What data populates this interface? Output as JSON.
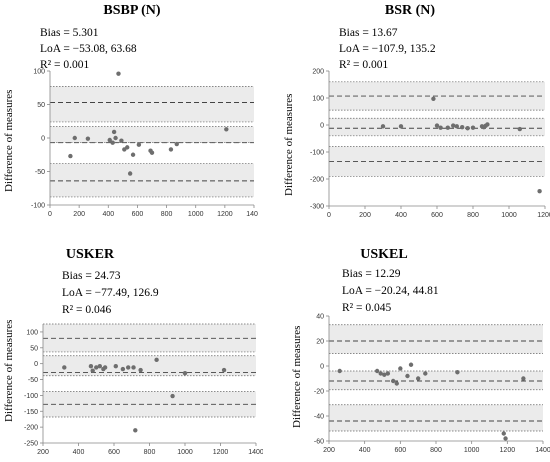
{
  "chart_data": [
    {
      "type": "scatter",
      "title": "BSBP (N)",
      "ylabel": "Difference of measures",
      "xlabel": "",
      "stats": {
        "bias": "Bias = 5.301",
        "loa": "LoA = −53.08, 63.68",
        "r2": "R² = 0.001"
      },
      "bias": 5.301,
      "loa": [
        -53.08,
        63.68
      ],
      "xlim": [
        0,
        1400
      ],
      "ylim": [
        -100,
        100
      ],
      "xticks": [
        0,
        200,
        400,
        600,
        800,
        1000,
        1200,
        1400
      ],
      "yticks": [
        -100,
        -50,
        0,
        50,
        100
      ],
      "bands": [
        [
          -88,
          -38
        ],
        [
          -7,
          17
        ],
        [
          24,
          77
        ]
      ],
      "dashed_lines": [
        -64,
        -7,
        53
      ],
      "points": [
        {
          "x": 140,
          "y": -27
        },
        {
          "x": 170,
          "y": 0
        },
        {
          "x": 260,
          "y": -1
        },
        {
          "x": 410,
          "y": -3
        },
        {
          "x": 430,
          "y": -7
        },
        {
          "x": 440,
          "y": 9
        },
        {
          "x": 450,
          "y": 0
        },
        {
          "x": 470,
          "y": 96
        },
        {
          "x": 490,
          "y": -4
        },
        {
          "x": 510,
          "y": -17
        },
        {
          "x": 530,
          "y": -14
        },
        {
          "x": 550,
          "y": -53
        },
        {
          "x": 570,
          "y": -25
        },
        {
          "x": 610,
          "y": -10
        },
        {
          "x": 690,
          "y": -19
        },
        {
          "x": 700,
          "y": -22
        },
        {
          "x": 830,
          "y": -17
        },
        {
          "x": 870,
          "y": -9
        },
        {
          "x": 1210,
          "y": 13
        }
      ]
    },
    {
      "type": "scatter",
      "title": "BSR (N)",
      "ylabel": "Difference of measures",
      "xlabel": "",
      "stats": {
        "bias": "Bias = 13.67",
        "loa": "LoA = −107.9, 135.2",
        "r2": "R² = 0.001"
      },
      "bias": 13.67,
      "loa": [
        -107.9,
        135.2
      ],
      "xlim": [
        0,
        1200
      ],
      "ylim": [
        -300,
        200
      ],
      "xticks": [
        0,
        200,
        400,
        600,
        800,
        1000,
        1200
      ],
      "yticks": [
        -300,
        -200,
        -100,
        0,
        100,
        200
      ],
      "bands": [
        [
          -190,
          -80
        ],
        [
          -40,
          25
        ],
        [
          55,
          160
        ]
      ],
      "dashed_lines": [
        -135,
        -12,
        107
      ],
      "points": [
        {
          "x": 300,
          "y": -5
        },
        {
          "x": 400,
          "y": -5
        },
        {
          "x": 580,
          "y": 97
        },
        {
          "x": 600,
          "y": -2
        },
        {
          "x": 620,
          "y": -10
        },
        {
          "x": 660,
          "y": -10
        },
        {
          "x": 690,
          "y": -2
        },
        {
          "x": 710,
          "y": -5
        },
        {
          "x": 740,
          "y": -8
        },
        {
          "x": 770,
          "y": -12
        },
        {
          "x": 800,
          "y": -10
        },
        {
          "x": 850,
          "y": -5
        },
        {
          "x": 860,
          "y": -8
        },
        {
          "x": 870,
          "y": -3
        },
        {
          "x": 880,
          "y": 2
        },
        {
          "x": 1060,
          "y": -15
        },
        {
          "x": 1170,
          "y": -245
        }
      ]
    },
    {
      "type": "scatter",
      "title": "USKER",
      "ylabel": "Difference of measures",
      "xlabel": "",
      "stats": {
        "bias": "Bias = 24.73",
        "loa": "LoA = −77.49, 126.9",
        "r2": "R² = 0.046"
      },
      "bias": 24.73,
      "loa": [
        -77.49,
        126.9
      ],
      "xlim": [
        200,
        1400
      ],
      "ylim": [
        -250,
        125
      ],
      "xticks": [
        200,
        400,
        600,
        800,
        1000,
        1200,
        1400
      ],
      "yticks": [
        -250,
        -200,
        -150,
        -100,
        -50,
        0,
        50,
        100
      ],
      "bands": [
        [
          -168,
          -88
        ],
        [
          -38,
          25
        ],
        [
          37,
          125
        ]
      ],
      "dashed_lines": [
        -128,
        -28,
        80
      ],
      "points": [
        {
          "x": 320,
          "y": -12
        },
        {
          "x": 470,
          "y": -8
        },
        {
          "x": 480,
          "y": -22
        },
        {
          "x": 500,
          "y": -12
        },
        {
          "x": 520,
          "y": -8
        },
        {
          "x": 540,
          "y": -17
        },
        {
          "x": 550,
          "y": -12
        },
        {
          "x": 610,
          "y": -8
        },
        {
          "x": 650,
          "y": -17
        },
        {
          "x": 680,
          "y": -12
        },
        {
          "x": 710,
          "y": -12
        },
        {
          "x": 720,
          "y": -210
        },
        {
          "x": 750,
          "y": -20
        },
        {
          "x": 840,
          "y": 12
        },
        {
          "x": 930,
          "y": -102
        },
        {
          "x": 1000,
          "y": -30
        },
        {
          "x": 1220,
          "y": -20
        }
      ]
    },
    {
      "type": "scatter",
      "title": "USKEL",
      "ylabel": "Difference of measures",
      "xlabel": "",
      "stats": {
        "bias": "Bias = 12.29",
        "loa": "LoA = −20.24, 44.81",
        "r2": "R² = 0.045"
      },
      "bias": 12.29,
      "loa": [
        -20.24,
        44.81
      ],
      "xlim": [
        200,
        1400
      ],
      "ylim": [
        -60,
        40
      ],
      "xticks": [
        200,
        400,
        600,
        800,
        1000,
        1200,
        1400
      ],
      "yticks": [
        -60,
        -40,
        -20,
        0,
        20,
        40
      ],
      "bands": [
        [
          -52,
          -31
        ],
        [
          -19,
          -4
        ],
        [
          10,
          33
        ]
      ],
      "dashed_lines": [
        -44,
        -12,
        20
      ],
      "points": [
        {
          "x": 260,
          "y": -4
        },
        {
          "x": 470,
          "y": -4
        },
        {
          "x": 490,
          "y": -6
        },
        {
          "x": 510,
          "y": -7
        },
        {
          "x": 530,
          "y": -6
        },
        {
          "x": 560,
          "y": -12
        },
        {
          "x": 580,
          "y": -14
        },
        {
          "x": 600,
          "y": -2
        },
        {
          "x": 640,
          "y": -8
        },
        {
          "x": 660,
          "y": 1
        },
        {
          "x": 700,
          "y": -10
        },
        {
          "x": 740,
          "y": -6
        },
        {
          "x": 920,
          "y": -5
        },
        {
          "x": 1180,
          "y": -54
        },
        {
          "x": 1190,
          "y": -58
        },
        {
          "x": 1290,
          "y": -10
        }
      ]
    }
  ]
}
